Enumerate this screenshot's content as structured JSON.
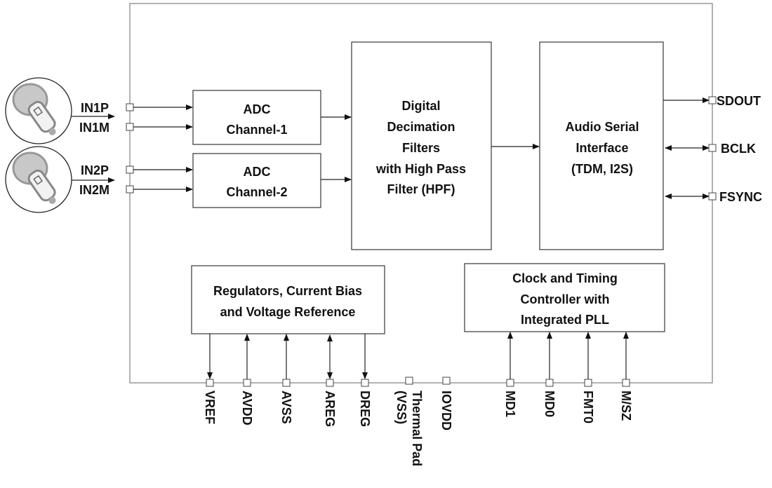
{
  "blocks": {
    "adc1": [
      "ADC",
      "Channel-1"
    ],
    "adc2": [
      "ADC",
      "Channel-2"
    ],
    "decimation": [
      "Digital",
      "Decimation",
      "Filters",
      "with High Pass",
      "Filter (HPF)"
    ],
    "asi": [
      "Audio Serial",
      "Interface",
      "(TDM, I2S)"
    ],
    "regulators": [
      "Regulators, Current Bias",
      "and  Voltage Reference"
    ],
    "clock": [
      "Clock and Timing",
      "Controller with",
      "Integrated PLL"
    ]
  },
  "pins": {
    "left": [
      "IN1P",
      "IN1M",
      "IN2P",
      "IN2M"
    ],
    "right": [
      "SDOUT",
      "BCLK",
      "FSYNC"
    ],
    "bottom": [
      "VREF",
      "AVDD",
      "AVSS",
      "AREG",
      "DREG",
      "Thermal Pad",
      "(VSS)",
      "IOVDD",
      "MD1",
      "MD0",
      "FMT0",
      "M/SZ"
    ]
  },
  "icons": [
    "microphone-icon",
    "microphone-icon"
  ]
}
